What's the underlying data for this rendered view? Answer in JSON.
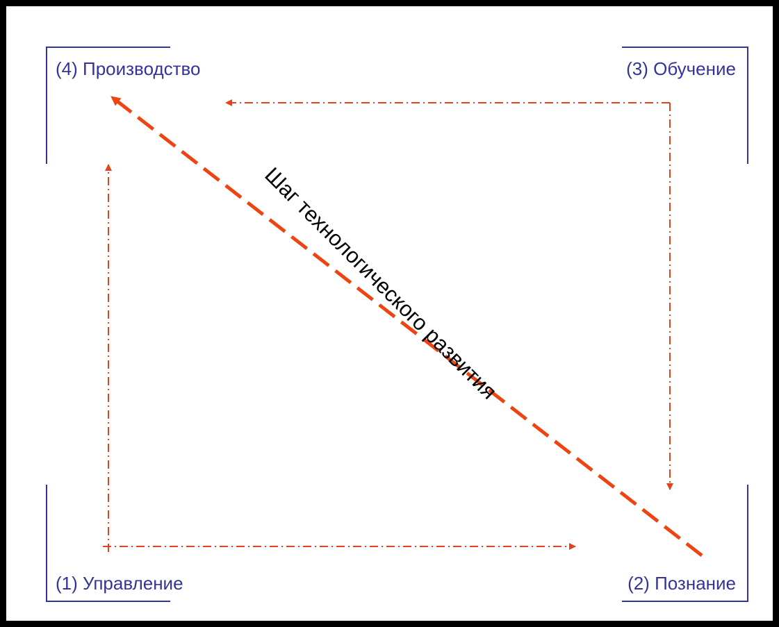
{
  "nodes": {
    "production": "(4) Производство",
    "learning": "(3) Обучение",
    "management": "(1) Управление",
    "cognition": "(2) Познание"
  },
  "diagonal_label": "Шаг технологического развития",
  "colors": {
    "frame": "#000000",
    "corner_brackets": "#333399",
    "label_text": "#333399",
    "cycle_arrows": "#e8401c",
    "diagonal_arrow": "#ee4411",
    "diagonal_text": "#000000"
  }
}
